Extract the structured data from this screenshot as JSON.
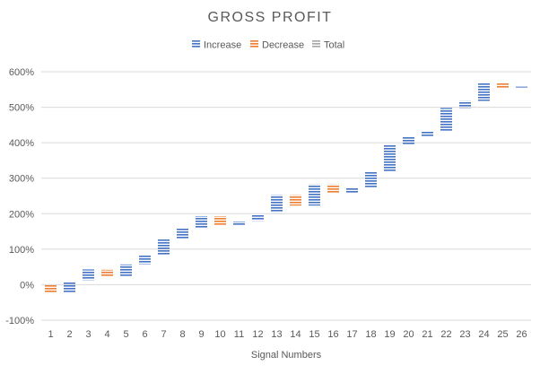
{
  "chart_data": {
    "type": "bar",
    "subtype": "waterfall",
    "title": "GROSS PROFIT",
    "xlabel": "Signal Numbers",
    "ylabel": "",
    "ylim": [
      -100,
      600
    ],
    "yticks": [
      -100,
      0,
      100,
      200,
      300,
      400,
      500,
      600
    ],
    "ytick_suffix": "%",
    "grid": true,
    "legend_position": "top",
    "legend": [
      {
        "name": "Increase",
        "color": "#4472C4"
      },
      {
        "name": "Decrease",
        "color": "#ED7D31"
      },
      {
        "name": "Total",
        "color": "#A5A5A5"
      }
    ],
    "categories": [
      "1",
      "2",
      "3",
      "4",
      "5",
      "6",
      "7",
      "8",
      "9",
      "10",
      "11",
      "12",
      "13",
      "14",
      "15",
      "16",
      "17",
      "18",
      "19",
      "20",
      "21",
      "22",
      "23",
      "24",
      "25",
      "26"
    ],
    "bars": [
      {
        "start": 0,
        "end": -22,
        "kind": "decrease"
      },
      {
        "start": -22,
        "end": 8,
        "kind": "increase"
      },
      {
        "start": 13,
        "end": 43,
        "kind": "increase"
      },
      {
        "start": 42,
        "end": 22,
        "kind": "decrease"
      },
      {
        "start": 22,
        "end": 57,
        "kind": "increase"
      },
      {
        "start": 58,
        "end": 83,
        "kind": "increase"
      },
      {
        "start": 83,
        "end": 130,
        "kind": "increase"
      },
      {
        "start": 130,
        "end": 158,
        "kind": "increase"
      },
      {
        "start": 158,
        "end": 193,
        "kind": "increase"
      },
      {
        "start": 193,
        "end": 168,
        "kind": "decrease"
      },
      {
        "start": 168,
        "end": 178,
        "kind": "increase"
      },
      {
        "start": 180,
        "end": 198,
        "kind": "increase"
      },
      {
        "start": 203,
        "end": 253,
        "kind": "increase"
      },
      {
        "start": 253,
        "end": 223,
        "kind": "decrease"
      },
      {
        "start": 223,
        "end": 283,
        "kind": "increase"
      },
      {
        "start": 283,
        "end": 258,
        "kind": "decrease"
      },
      {
        "start": 258,
        "end": 273,
        "kind": "increase"
      },
      {
        "start": 273,
        "end": 318,
        "kind": "increase"
      },
      {
        "start": 318,
        "end": 393,
        "kind": "increase"
      },
      {
        "start": 393,
        "end": 418,
        "kind": "increase"
      },
      {
        "start": 418,
        "end": 433,
        "kind": "increase"
      },
      {
        "start": 433,
        "end": 498,
        "kind": "increase"
      },
      {
        "start": 498,
        "end": 518,
        "kind": "increase"
      },
      {
        "start": 518,
        "end": 568,
        "kind": "increase"
      },
      {
        "start": 568,
        "end": 553,
        "kind": "decrease"
      },
      {
        "start": 553,
        "end": 558,
        "kind": "increase"
      }
    ]
  }
}
